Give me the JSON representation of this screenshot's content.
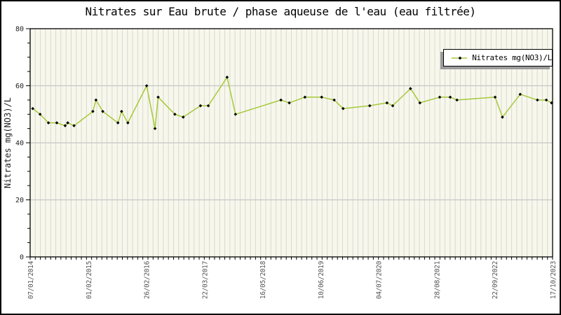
{
  "title": "Nitrates sur Eau brute / phase aqueuse de l'eau (eau filtrée)",
  "chart_data": {
    "type": "line",
    "title": "Nitrates sur Eau brute / phase aqueuse de l'eau (eau filtrée)",
    "ylabel": "Nitrates mg(NO3)/L",
    "xlabel": "",
    "ylim": [
      0,
      80
    ],
    "yticks": [
      0,
      20,
      40,
      60,
      80
    ],
    "y_minor_step": 5,
    "x_tick_labels": [
      "07/01/2014",
      "01/02/2015",
      "26/02/2016",
      "22/03/2017",
      "16/05/2018",
      "10/06/2019",
      "04/07/2020",
      "28/08/2021",
      "22/09/2022",
      "17/10/2023"
    ],
    "grid_h_lines": [
      20,
      40,
      60
    ],
    "x_minor_count": 102,
    "legend_position": "top-right",
    "colors": {
      "plot_bg": "#f7f7ec",
      "stripe": "#d9d9d3",
      "grid": "#c6c6c6",
      "axis": "#000000",
      "line": "#a6c939",
      "marker": "#000000"
    },
    "series": [
      {
        "name": "Nitrates mg(NO3)/L",
        "color": "#a6c939",
        "marker_color": "#000000",
        "points": [
          [
            0.005,
            52
          ],
          [
            0.019,
            50
          ],
          [
            0.035,
            47
          ],
          [
            0.051,
            47
          ],
          [
            0.067,
            46
          ],
          [
            0.072,
            47
          ],
          [
            0.084,
            46
          ],
          [
            0.12,
            51
          ],
          [
            0.126,
            55
          ],
          [
            0.139,
            51
          ],
          [
            0.168,
            47
          ],
          [
            0.175,
            51
          ],
          [
            0.187,
            47
          ],
          [
            0.223,
            60
          ],
          [
            0.239,
            45
          ],
          [
            0.245,
            56
          ],
          [
            0.277,
            50
          ],
          [
            0.293,
            49
          ],
          [
            0.326,
            53
          ],
          [
            0.341,
            53
          ],
          [
            0.377,
            63
          ],
          [
            0.393,
            50
          ],
          [
            0.48,
            55
          ],
          [
            0.496,
            54
          ],
          [
            0.526,
            56
          ],
          [
            0.558,
            56
          ],
          [
            0.582,
            55
          ],
          [
            0.599,
            52
          ],
          [
            0.65,
            53
          ],
          [
            0.683,
            54
          ],
          [
            0.694,
            53
          ],
          [
            0.728,
            59
          ],
          [
            0.746,
            54
          ],
          [
            0.784,
            56
          ],
          [
            0.804,
            56
          ],
          [
            0.817,
            55
          ],
          [
            0.89,
            56
          ],
          [
            0.904,
            49
          ],
          [
            0.938,
            57
          ],
          [
            0.971,
            55
          ],
          [
            0.988,
            55
          ],
          [
            0.998,
            54
          ]
        ]
      }
    ]
  },
  "legend": {
    "label": "Nitrates mg(NO3)/L"
  }
}
